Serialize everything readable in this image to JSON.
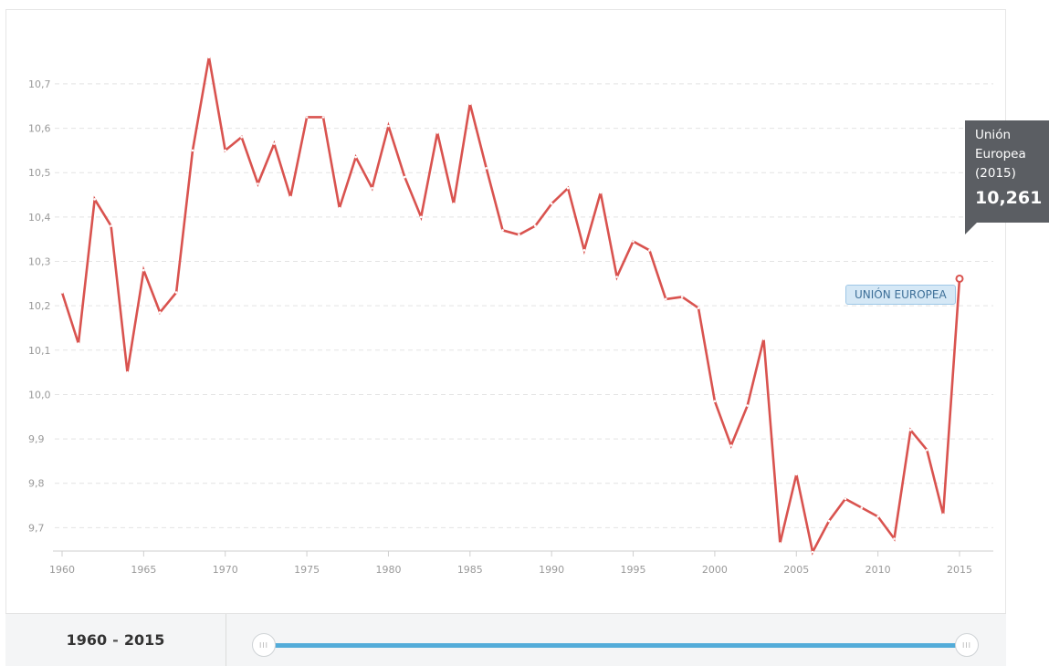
{
  "chart_data": {
    "type": "line",
    "title": "",
    "xlabel": "",
    "ylabel": "",
    "x": [
      1960,
      1961,
      1962,
      1963,
      1964,
      1965,
      1966,
      1967,
      1968,
      1969,
      1970,
      1971,
      1972,
      1973,
      1974,
      1975,
      1976,
      1977,
      1978,
      1979,
      1980,
      1981,
      1982,
      1983,
      1984,
      1985,
      1986,
      1987,
      1988,
      1989,
      1990,
      1991,
      1992,
      1993,
      1994,
      1995,
      1996,
      1997,
      1998,
      1999,
      2000,
      2001,
      2002,
      2003,
      2004,
      2005,
      2006,
      2007,
      2008,
      2009,
      2010,
      2011,
      2012,
      2013,
      2014,
      2015
    ],
    "series": [
      {
        "name": "UNIÓN EUROPEA",
        "color": "#d9534f",
        "values": [
          10.23,
          10.115,
          10.44,
          10.38,
          10.05,
          10.28,
          10.185,
          10.23,
          10.55,
          10.76,
          10.55,
          10.58,
          10.475,
          10.565,
          10.445,
          10.625,
          10.625,
          10.42,
          10.535,
          10.465,
          10.605,
          10.49,
          10.4,
          10.59,
          10.43,
          10.655,
          10.51,
          10.37,
          10.36,
          10.38,
          10.43,
          10.465,
          10.325,
          10.455,
          10.265,
          10.345,
          10.325,
          10.215,
          10.22,
          10.195,
          9.985,
          9.885,
          9.975,
          10.125,
          9.665,
          9.82,
          9.645,
          9.715,
          9.765,
          9.745,
          9.725,
          9.675,
          9.92,
          9.875,
          9.73,
          10.261
        ]
      }
    ],
    "x_ticks": [
      1960,
      1965,
      1970,
      1975,
      1980,
      1985,
      1990,
      1995,
      2000,
      2005,
      2010,
      2015
    ],
    "y_ticks": [
      9.7,
      9.8,
      9.9,
      10.0,
      10.1,
      10.2,
      10.3,
      10.4,
      10.5,
      10.6,
      10.7
    ],
    "y_tick_labels": [
      "9,7",
      "9,8",
      "9,9",
      "10,0",
      "10,1",
      "10,2",
      "10,3",
      "10,4",
      "10,5",
      "10,6",
      "10,7"
    ],
    "xlim": [
      1960,
      2015
    ],
    "ylim": [
      9.635,
      10.78
    ],
    "grid": true,
    "legend": "none"
  },
  "tooltip": {
    "name": "Unión Europea (2015)",
    "value": "10,261"
  },
  "series_label": "UNIÓN EUROPEA",
  "range": {
    "start": "1960",
    "separator": "-",
    "end": "2015"
  },
  "slider": {
    "handle_glyph": "III",
    "color": "#53acd9"
  },
  "colors": {
    "line": "#d9534f",
    "tooltip_bg": "#5b5e63",
    "badge_bg": "#d5e8f6"
  }
}
